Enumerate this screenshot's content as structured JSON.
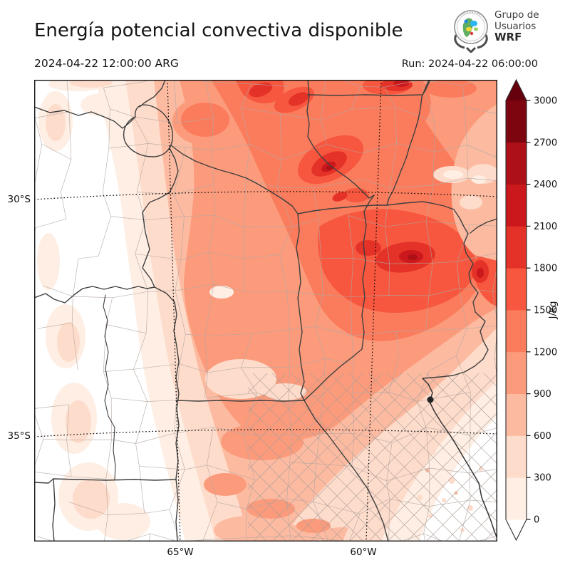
{
  "header": {
    "title": "Energía potencial convectiva disponible",
    "logo": {
      "line1": "Grupo de",
      "line2": "Usuarios",
      "line3": "WRF"
    }
  },
  "subheader": {
    "valid_time": "2024-04-22 12:00:00 ARG",
    "run_label": "Run: 2024-04-22 06:00:00"
  },
  "map": {
    "lat_labels": [
      "30°S",
      "35°S"
    ],
    "lon_labels": [
      "65°W",
      "60°W"
    ]
  },
  "colorbar": {
    "unit": "J/kg",
    "ticks": [
      "0",
      "300",
      "600",
      "900",
      "1200",
      "1500",
      "1800",
      "2100",
      "2400",
      "2700",
      "3000"
    ],
    "segment_colors": [
      "#feeee3",
      "#fedccb",
      "#fcbba1",
      "#fc9b7c",
      "#fb7c5c",
      "#f6573e",
      "#e53228",
      "#cb181d",
      "#ad1117",
      "#7c0510"
    ],
    "over_color": "#67000d",
    "under_color": "#ffffff"
  }
}
